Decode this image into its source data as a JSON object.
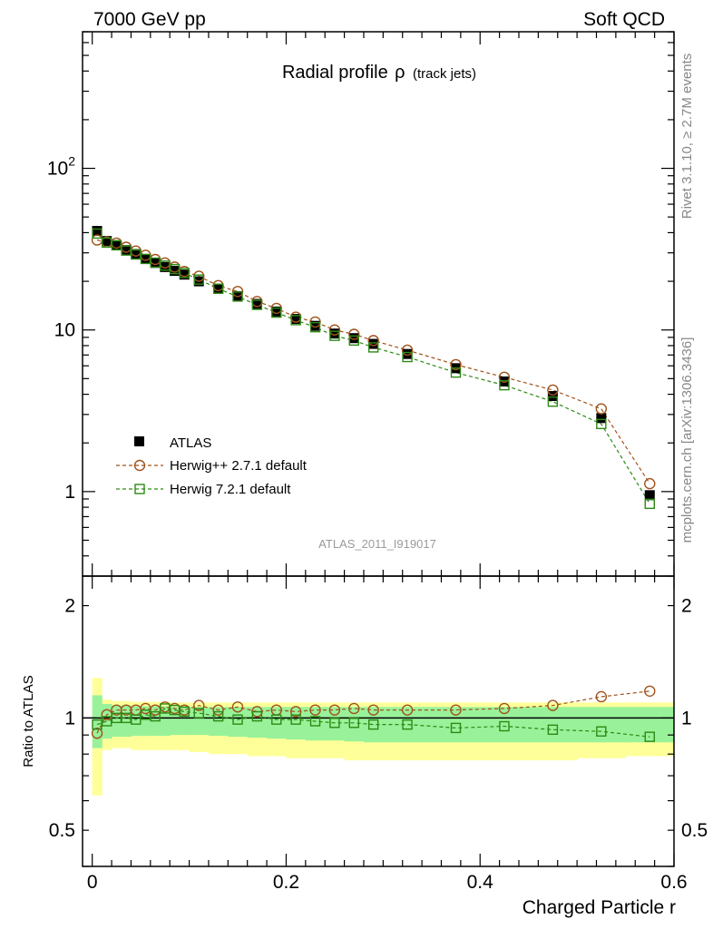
{
  "header": {
    "left": "7000 GeV pp",
    "right": "Soft QCD"
  },
  "side_labels": {
    "rivet": "Rivet 3.1.10, ≥ 2.7M events",
    "mcplots": "mcplots.cern.ch [arXiv:1306.3436]"
  },
  "main_title": {
    "text": "Radial profile",
    "symbol": "ρ",
    "suffix": "(track jets)"
  },
  "analysis_id": "ATLAS_2011_I919017",
  "ratio_ylabel": "Ratio to ATLAS",
  "xlabel": "Charged Particle r",
  "colors": {
    "herwigpp": "#a0521b",
    "herwig7": "#2c8a14",
    "band_inner": "#99f299",
    "band_outer": "#ffff99",
    "data": "#000000"
  },
  "chart_data": [
    {
      "type": "scatter",
      "yscale": "log",
      "xlim": [
        -0.01,
        0.6
      ],
      "ylim": [
        0.3,
        700
      ],
      "y_ticks": [
        {
          "value": 1,
          "label": "1"
        },
        {
          "value": 10,
          "label": "10"
        },
        {
          "value": 100,
          "label": "10",
          "sup": "2"
        }
      ],
      "x": [
        0.005,
        0.015,
        0.025,
        0.035,
        0.045,
        0.055,
        0.065,
        0.075,
        0.085,
        0.095,
        0.11,
        0.13,
        0.15,
        0.17,
        0.19,
        0.21,
        0.23,
        0.25,
        0.27,
        0.29,
        0.325,
        0.375,
        0.425,
        0.475,
        0.525,
        0.575
      ],
      "series": [
        {
          "name": "ATLAS",
          "marker": "filled-square",
          "values": [
            41,
            35.5,
            33.5,
            31.2,
            29.5,
            27.5,
            26,
            24.5,
            23.2,
            22,
            20,
            18,
            16.2,
            14.5,
            13,
            11.7,
            10.6,
            9.5,
            8.9,
            8.2,
            7.1,
            5.8,
            4.8,
            3.9,
            2.85,
            0.95
          ]
        },
        {
          "name": "Herwig++ 2.7.1 default",
          "marker": "open-circle",
          "values": [
            36,
            35,
            34.5,
            32.5,
            30.8,
            29,
            27.3,
            26,
            24.5,
            23,
            21.5,
            18.8,
            17.3,
            15,
            13.6,
            12,
            11.2,
            10,
            9.4,
            8.6,
            7.5,
            6.1,
            5.1,
            4.25,
            3.25,
            1.12
          ]
        },
        {
          "name": "Herwig 7.2.1 default",
          "marker": "open-square",
          "values": [
            39.5,
            34.7,
            33.4,
            31,
            29.3,
            27.5,
            26.1,
            25,
            23.8,
            22.5,
            20.5,
            18,
            16.1,
            14.3,
            12.8,
            11.5,
            10.4,
            9.2,
            8.6,
            7.8,
            6.8,
            5.45,
            4.55,
            3.6,
            2.62,
            0.84
          ]
        }
      ],
      "legend": "lower-left"
    },
    {
      "type": "scatter",
      "yscale": "log",
      "ylabel": "Ratio to ATLAS",
      "xlabel": "Charged Particle r",
      "xlim": [
        -0.01,
        0.6
      ],
      "ylim": [
        0.4,
        2.4
      ],
      "x_ticks": [
        {
          "value": 0,
          "label": "0"
        },
        {
          "value": 0.2,
          "label": "0.2"
        },
        {
          "value": 0.4,
          "label": "0.4"
        },
        {
          "value": 0.6,
          "label": "0.6"
        }
      ],
      "y_ticks": [
        {
          "value": 0.5,
          "label": "0.5"
        },
        {
          "value": 1,
          "label": "1"
        },
        {
          "value": 2,
          "label": "2"
        }
      ],
      "x": [
        0.005,
        0.015,
        0.025,
        0.035,
        0.045,
        0.055,
        0.065,
        0.075,
        0.085,
        0.095,
        0.11,
        0.13,
        0.15,
        0.17,
        0.19,
        0.21,
        0.23,
        0.25,
        0.27,
        0.29,
        0.325,
        0.375,
        0.425,
        0.475,
        0.525,
        0.575
      ],
      "series": [
        {
          "name": "Herwig++ 2.7.1 default",
          "marker": "open-circle",
          "values": [
            0.91,
            1.02,
            1.05,
            1.05,
            1.05,
            1.06,
            1.05,
            1.07,
            1.06,
            1.05,
            1.08,
            1.05,
            1.07,
            1.04,
            1.05,
            1.04,
            1.05,
            1.05,
            1.06,
            1.05,
            1.05,
            1.05,
            1.06,
            1.08,
            1.14,
            1.18
          ]
        },
        {
          "name": "Herwig 7.2.1 default",
          "marker": "open-square",
          "values": [
            0.96,
            0.98,
            1.0,
            1.0,
            0.99,
            1.02,
            1.01,
            1.06,
            1.05,
            1.04,
            1.03,
            1.01,
            0.99,
            1.01,
            0.99,
            0.99,
            0.98,
            0.97,
            0.97,
            0.96,
            0.96,
            0.94,
            0.95,
            0.93,
            0.92,
            0.89
          ]
        }
      ],
      "bands": {
        "edges": [
          0.0,
          0.01,
          0.02,
          0.03,
          0.04,
          0.05,
          0.06,
          0.07,
          0.08,
          0.09,
          0.1,
          0.12,
          0.14,
          0.16,
          0.18,
          0.2,
          0.22,
          0.24,
          0.26,
          0.28,
          0.3,
          0.35,
          0.4,
          0.45,
          0.5,
          0.55,
          0.6
        ],
        "inner_low": [
          0.83,
          0.88,
          0.89,
          0.89,
          0.895,
          0.895,
          0.895,
          0.895,
          0.9,
          0.9,
          0.9,
          0.895,
          0.89,
          0.885,
          0.88,
          0.875,
          0.87,
          0.87,
          0.865,
          0.86,
          0.86,
          0.86,
          0.86,
          0.86,
          0.86,
          0.86
        ],
        "inner_high": [
          1.15,
          1.09,
          1.08,
          1.08,
          1.075,
          1.075,
          1.075,
          1.075,
          1.07,
          1.07,
          1.07,
          1.07,
          1.07,
          1.07,
          1.07,
          1.07,
          1.07,
          1.07,
          1.07,
          1.07,
          1.07,
          1.07,
          1.07,
          1.07,
          1.07,
          1.07
        ],
        "outer_low": [
          0.62,
          0.82,
          0.83,
          0.83,
          0.82,
          0.82,
          0.82,
          0.82,
          0.82,
          0.82,
          0.81,
          0.8,
          0.8,
          0.79,
          0.79,
          0.78,
          0.78,
          0.78,
          0.77,
          0.77,
          0.77,
          0.77,
          0.77,
          0.77,
          0.78,
          0.79
        ],
        "outer_high": [
          1.28,
          1.12,
          1.11,
          1.11,
          1.105,
          1.105,
          1.105,
          1.105,
          1.1,
          1.1,
          1.1,
          1.1,
          1.1,
          1.1,
          1.1,
          1.1,
          1.1,
          1.1,
          1.1,
          1.1,
          1.1,
          1.1,
          1.1,
          1.1,
          1.1,
          1.1
        ]
      },
      "reference_line": 1
    }
  ]
}
